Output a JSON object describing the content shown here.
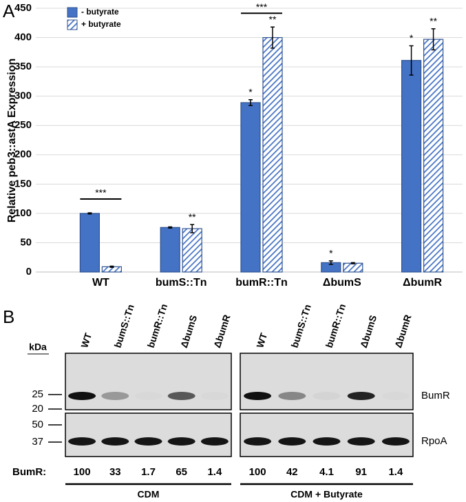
{
  "panel_labels": [
    "A",
    "B"
  ],
  "chart_data": {
    "type": "bar",
    "y_label": "Relative peb3::astA Expression",
    "categories": [
      "WT",
      "bumS::Tn",
      "bumR::Tn",
      "ΔbumS",
      "ΔbumR"
    ],
    "series": [
      {
        "name": "- butyrate",
        "color": "#4472c4",
        "hatch": false,
        "values": [
          100,
          76,
          289,
          16,
          361
        ],
        "errors": [
          1,
          1,
          5,
          3,
          25
        ]
      },
      {
        "name": "+ butyrate",
        "color": "#4472c4",
        "hatch": true,
        "values": [
          9,
          74,
          400,
          15,
          397
        ],
        "errors": [
          1,
          7,
          18,
          1,
          18
        ]
      }
    ],
    "ylim": [
      0,
      450
    ],
    "yticks": [
      0,
      50,
      100,
      150,
      200,
      250,
      300,
      350,
      400,
      450
    ],
    "grid": true,
    "legend": "top-left",
    "annotations": [
      {
        "text": "***",
        "category": "WT"
      },
      {
        "text": "**",
        "category": "bumS::Tn",
        "series": "+ butyrate"
      },
      {
        "text": "*",
        "category": "bumR::Tn",
        "series": "- butyrate"
      },
      {
        "text": "**",
        "category": "bumR::Tn",
        "series": "+ butyrate"
      },
      {
        "text": "***",
        "category": "bumR::Tn"
      },
      {
        "text": "*",
        "category": "ΔbumS",
        "series": "- butyrate"
      },
      {
        "text": "*",
        "category": "ΔbumR",
        "series": "- butyrate"
      },
      {
        "text": "**",
        "category": "ΔbumR",
        "series": "+ butyrate"
      }
    ]
  },
  "blot": {
    "marker_unit": "kDa",
    "markers": [
      25,
      20,
      50,
      37
    ],
    "bands": [
      "BumR",
      "RpoA"
    ],
    "quant_label": "BumR:",
    "groups": [
      {
        "name": "CDM",
        "lanes": [
          "WT",
          "bumS::Tn",
          "bumR::Tn",
          "ΔbumS",
          "ΔbumR"
        ],
        "quant": [
          100,
          33,
          1.7,
          65,
          1.4
        ]
      },
      {
        "name": "CDM + Butyrate",
        "lanes": [
          "WT",
          "bumS::Tn",
          "bumR::Tn",
          "ΔbumS",
          "ΔbumR"
        ],
        "quant": [
          100,
          42,
          4.1,
          91,
          1.4
        ]
      }
    ]
  }
}
